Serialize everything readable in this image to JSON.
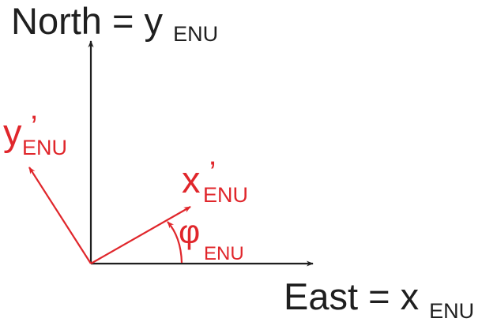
{
  "diagram": {
    "colors": {
      "reference": "#1f1f1f",
      "rotated": "#e0262b",
      "background": "#ffffff"
    },
    "labels": {
      "north": {
        "main": "North = y",
        "sub": "ENU"
      },
      "east": {
        "main": "East = x",
        "sub": "ENU"
      },
      "y_prime": {
        "main": "y",
        "prime": "’",
        "sub": "ENU"
      },
      "x_prime": {
        "main": "x",
        "prime": "’",
        "sub": "ENU"
      },
      "phi": {
        "main": "φ",
        "sub": "ENU"
      }
    }
  }
}
